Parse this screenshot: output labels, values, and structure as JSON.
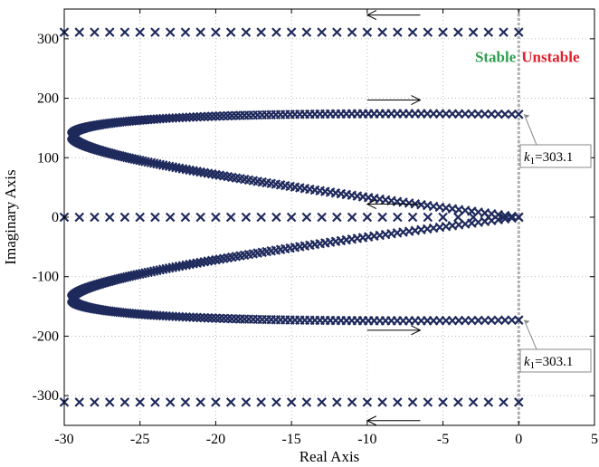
{
  "chart_data": {
    "type": "scatter",
    "title": "",
    "xlabel": "Real Axis",
    "ylabel": "Imaginary Axis",
    "xlim": [
      -30,
      5
    ],
    "ylim": [
      -350,
      350
    ],
    "xticks": [
      -30,
      -25,
      -20,
      -15,
      -10,
      -5,
      0,
      5
    ],
    "yticks": [
      -300,
      -200,
      -100,
      0,
      100,
      200,
      300
    ],
    "xtick_labels": [
      "-30",
      "-25",
      "-20",
      "-15",
      "-10",
      "-5",
      "0",
      "5"
    ],
    "ytick_labels": [
      "-300",
      "-200",
      "-100",
      "0",
      "100",
      "200",
      "300"
    ],
    "grid": true,
    "marker": "x",
    "marker_color": "#1f2a5c",
    "series": [
      {
        "branch": "upper-horizontal",
        "y": 311,
        "x_range": [
          -30,
          0
        ],
        "n_points": 31
      },
      {
        "branch": "middle-horizontal",
        "y": 0,
        "x_range": [
          -30,
          0
        ],
        "n_points": 31
      },
      {
        "branch": "lower-horizontal",
        "y": -311,
        "x_range": [
          -30,
          0
        ],
        "n_points": 31
      },
      {
        "branch": "upper-c-curve",
        "start": [
          0,
          173
        ],
        "vertex": [
          -29.5,
          137
        ],
        "end": [
          0,
          0
        ],
        "n_points": 260
      },
      {
        "branch": "lower-c-curve",
        "start": [
          0,
          -173
        ],
        "vertex": [
          -29.5,
          -137
        ],
        "end": [
          0,
          0
        ],
        "n_points": 260
      }
    ],
    "stability_boundary": {
      "x": 0,
      "color": "#b0b0b0"
    },
    "regions": {
      "stable_label": "Stable",
      "stable_color": "#2e9e4f",
      "unstable_label": "Unstable",
      "unstable_color": "#e0202a"
    },
    "annotations": [
      {
        "point": [
          0,
          173
        ],
        "label_k": "k",
        "label_sub": "1",
        "label_rest": "=303.1"
      },
      {
        "point": [
          0,
          -173
        ],
        "label_k": "k",
        "label_sub": "1",
        "label_rest": "=303.1"
      }
    ],
    "arrows": [
      {
        "y": 340,
        "x_from": -6.5,
        "x_to": -10,
        "direction": "left"
      },
      {
        "y": 197,
        "x_from": -10,
        "x_to": -6.5,
        "direction": "right"
      },
      {
        "y": 22,
        "x_from": -6.5,
        "x_to": -10,
        "direction": "left"
      },
      {
        "y": -190,
        "x_from": -10,
        "x_to": -6.5,
        "direction": "right"
      },
      {
        "y": -342,
        "x_from": -6.5,
        "x_to": -10,
        "direction": "left"
      }
    ]
  }
}
